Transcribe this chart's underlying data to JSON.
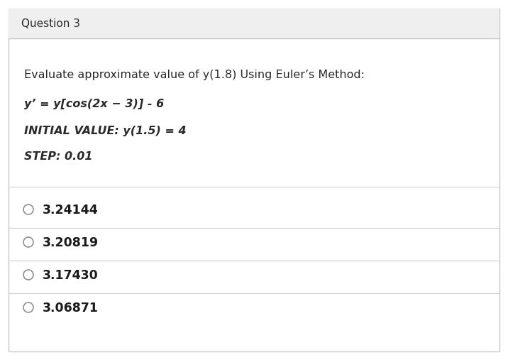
{
  "question_label": "Question 3",
  "header_bg": "#efefef",
  "body_bg": "#ffffff",
  "border_color": "#c8c8c8",
  "question_text": "Evaluate approximate value of y(1.8) Using Euler’s Method:",
  "equation": "y’ = y[cos(2x − 3)] - 6",
  "initial_value": "INITIAL VALUE: y(1.5) = 4",
  "step": "STEP: 0.01",
  "choices": [
    "3.24144",
    "3.20819",
    "3.17430",
    "3.06871"
  ],
  "normal_text_color": "#2a2a2a",
  "choice_text_color": "#1a1a1a",
  "circle_color": "#888888",
  "separator_color": "#d0d0d0",
  "question_fontsize": 11.5,
  "equation_fontsize": 11.5,
  "bold_italic_fontsize": 11.5,
  "choice_fontsize": 12.5,
  "header_label_fontsize": 11.0
}
